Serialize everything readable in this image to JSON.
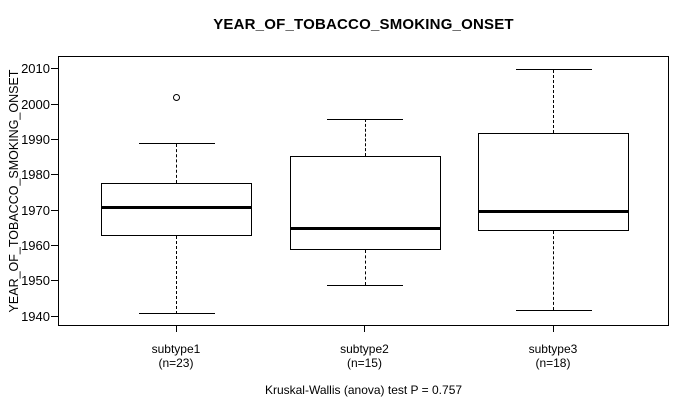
{
  "chart_data": {
    "type": "boxplot",
    "title": "YEAR_OF_TOBACCO_SMOKING_ONSET",
    "ylabel": "YEAR_OF_TOBACCO_SMOKING_ONSET",
    "footer": "Kruskal-Wallis (anova) test P = 0.757",
    "ylim": [
      1937.2,
      2013.6
    ],
    "yticks": [
      1940,
      1950,
      1960,
      1970,
      1980,
      1990,
      2000,
      2010
    ],
    "grid": false,
    "axis_color": "#000000",
    "box_fill": "#ffffff",
    "groups": [
      {
        "label": "subtype1",
        "count_label": "(n=23)",
        "n": 23,
        "whisker_low": 1941,
        "q1": 1963,
        "median": 1971,
        "q3": 1978,
        "whisker_high": 1989,
        "outliers": [
          2002
        ]
      },
      {
        "label": "subtype2",
        "count_label": "(n=15)",
        "n": 15,
        "whisker_low": 1949,
        "q1": 1959,
        "median": 1965,
        "q3": 1985.5,
        "whisker_high": 1996,
        "outliers": []
      },
      {
        "label": "subtype3",
        "count_label": "(n=18)",
        "n": 18,
        "whisker_low": 1942,
        "q1": 1964.25,
        "median": 1970,
        "q3": 1992,
        "whisker_high": 2010,
        "outliers": []
      }
    ]
  }
}
